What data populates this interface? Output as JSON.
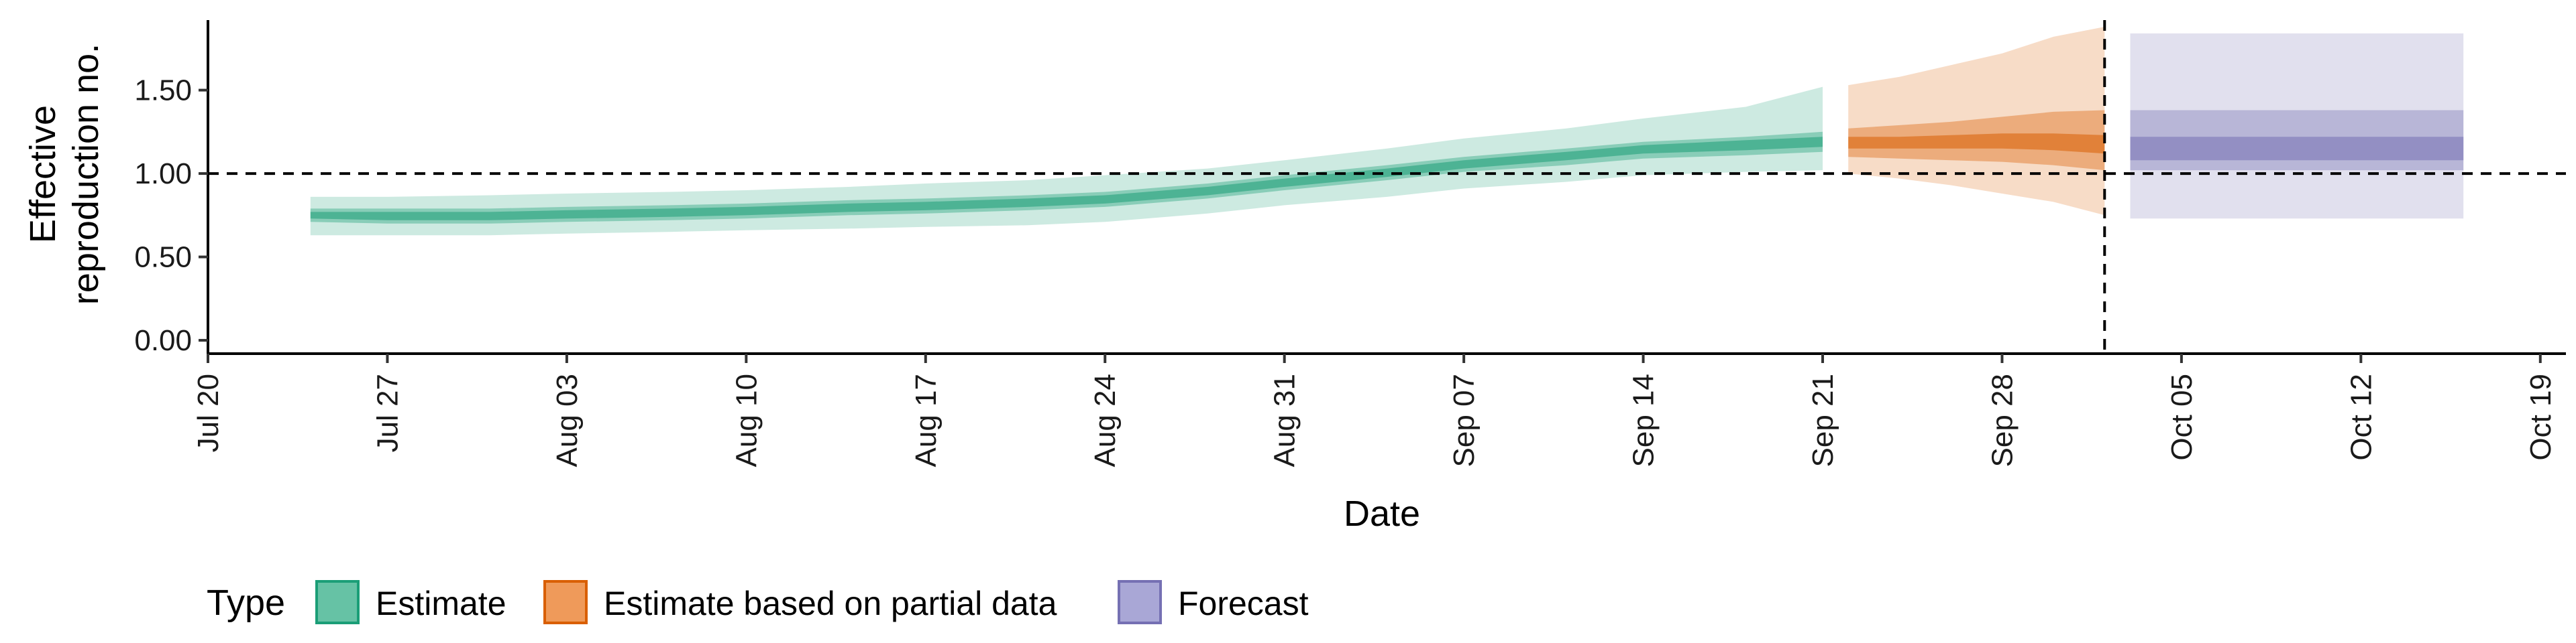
{
  "chart_data": {
    "type": "area",
    "xlabel": "Date",
    "ylabel_line1": "Effective",
    "ylabel_line2": "reproduction no.",
    "xlim": [
      "2020-07-20",
      "2020-10-20"
    ],
    "ylim": [
      -0.08,
      1.92
    ],
    "x_ticks": [
      {
        "date": "2020-07-20",
        "label": "Jul 20"
      },
      {
        "date": "2020-07-27",
        "label": "Jul 27"
      },
      {
        "date": "2020-08-03",
        "label": "Aug 03"
      },
      {
        "date": "2020-08-10",
        "label": "Aug 10"
      },
      {
        "date": "2020-08-17",
        "label": "Aug 17"
      },
      {
        "date": "2020-08-24",
        "label": "Aug 24"
      },
      {
        "date": "2020-08-31",
        "label": "Aug 31"
      },
      {
        "date": "2020-09-07",
        "label": "Sep 07"
      },
      {
        "date": "2020-09-14",
        "label": "Sep 14"
      },
      {
        "date": "2020-09-21",
        "label": "Sep 21"
      },
      {
        "date": "2020-09-28",
        "label": "Sep 28"
      },
      {
        "date": "2020-10-05",
        "label": "Oct 05"
      },
      {
        "date": "2020-10-12",
        "label": "Oct 12"
      },
      {
        "date": "2020-10-19",
        "label": "Oct 19"
      }
    ],
    "y_ticks": [
      {
        "value": 0,
        "label": "0.00"
      },
      {
        "value": 0.5,
        "label": "0.50"
      },
      {
        "value": 1,
        "label": "1.00"
      },
      {
        "value": 1.5,
        "label": "1.50"
      }
    ],
    "reference_line_y": 1.0,
    "reference_line_x": "2020-10-02",
    "legend": {
      "title": "Type",
      "placement": "bottom-left",
      "entries": [
        {
          "label": "Estimate",
          "fill": "#66c2a5",
          "stroke": "#1b9e77"
        },
        {
          "label": "Estimate based on partial data",
          "fill": "#ef9a5a",
          "stroke": "#d95f02"
        },
        {
          "label": "Forecast",
          "fill": "#a9a7d6",
          "stroke": "#7570b3"
        }
      ]
    },
    "series": [
      {
        "type_label": "Estimate",
        "color": "#1b9e77",
        "x": [
          "2020-07-24",
          "2020-07-27",
          "2020-07-31",
          "2020-08-03",
          "2020-08-07",
          "2020-08-10",
          "2020-08-14",
          "2020-08-17",
          "2020-08-21",
          "2020-08-24",
          "2020-08-28",
          "2020-08-31",
          "2020-09-04",
          "2020-09-07",
          "2020-09-11",
          "2020-09-14",
          "2020-09-18",
          "2020-09-21"
        ],
        "median": [
          0.75,
          0.74,
          0.74,
          0.75,
          0.76,
          0.77,
          0.79,
          0.8,
          0.82,
          0.84,
          0.89,
          0.94,
          1.0,
          1.05,
          1.1,
          1.14,
          1.17,
          1.19
        ],
        "lower_90": [
          0.63,
          0.63,
          0.63,
          0.64,
          0.65,
          0.66,
          0.67,
          0.68,
          0.69,
          0.71,
          0.76,
          0.81,
          0.86,
          0.91,
          0.95,
          0.99,
          1.01,
          1.02
        ],
        "upper_90": [
          0.86,
          0.86,
          0.87,
          0.88,
          0.89,
          0.9,
          0.92,
          0.94,
          0.96,
          0.99,
          1.03,
          1.08,
          1.15,
          1.21,
          1.27,
          1.33,
          1.4,
          1.52
        ],
        "lower_50": [
          0.71,
          0.7,
          0.7,
          0.71,
          0.72,
          0.73,
          0.75,
          0.76,
          0.78,
          0.8,
          0.85,
          0.9,
          0.96,
          1.01,
          1.05,
          1.09,
          1.11,
          1.13
        ],
        "upper_50": [
          0.79,
          0.79,
          0.79,
          0.8,
          0.81,
          0.82,
          0.84,
          0.85,
          0.87,
          0.89,
          0.94,
          0.99,
          1.05,
          1.1,
          1.15,
          1.19,
          1.22,
          1.25
        ],
        "lower_20": [
          0.73,
          0.72,
          0.72,
          0.73,
          0.74,
          0.75,
          0.77,
          0.78,
          0.8,
          0.82,
          0.87,
          0.92,
          0.98,
          1.03,
          1.08,
          1.12,
          1.14,
          1.16
        ],
        "upper_20": [
          0.77,
          0.77,
          0.77,
          0.78,
          0.79,
          0.8,
          0.82,
          0.83,
          0.85,
          0.87,
          0.92,
          0.97,
          1.03,
          1.08,
          1.13,
          1.17,
          1.2,
          1.22
        ]
      },
      {
        "type_label": "Estimate based on partial data",
        "color": "#d95f02",
        "x": [
          "2020-09-22",
          "2020-09-24",
          "2020-09-26",
          "2020-09-28",
          "2020-09-30",
          "2020-10-02"
        ],
        "median": [
          1.18,
          1.18,
          1.19,
          1.2,
          1.19,
          1.17
        ],
        "lower_90": [
          1.0,
          0.97,
          0.93,
          0.88,
          0.83,
          0.75
        ],
        "upper_90": [
          1.53,
          1.58,
          1.65,
          1.72,
          1.82,
          1.88
        ],
        "lower_50": [
          1.1,
          1.09,
          1.08,
          1.07,
          1.05,
          1.02
        ],
        "upper_50": [
          1.27,
          1.29,
          1.31,
          1.34,
          1.37,
          1.38
        ],
        "lower_20": [
          1.15,
          1.15,
          1.15,
          1.15,
          1.14,
          1.12
        ],
        "upper_20": [
          1.22,
          1.22,
          1.23,
          1.24,
          1.24,
          1.23
        ]
      },
      {
        "type_label": "Forecast",
        "color": "#7570b3",
        "x": [
          "2020-10-03",
          "2020-10-16"
        ],
        "median": [
          1.15,
          1.15
        ],
        "lower_90": [
          0.73,
          0.73
        ],
        "upper_90": [
          1.84,
          1.84
        ],
        "lower_50": [
          1.02,
          1.02
        ],
        "upper_50": [
          1.38,
          1.38
        ],
        "lower_20": [
          1.08,
          1.08
        ],
        "upper_20": [
          1.22,
          1.22
        ]
      }
    ]
  }
}
